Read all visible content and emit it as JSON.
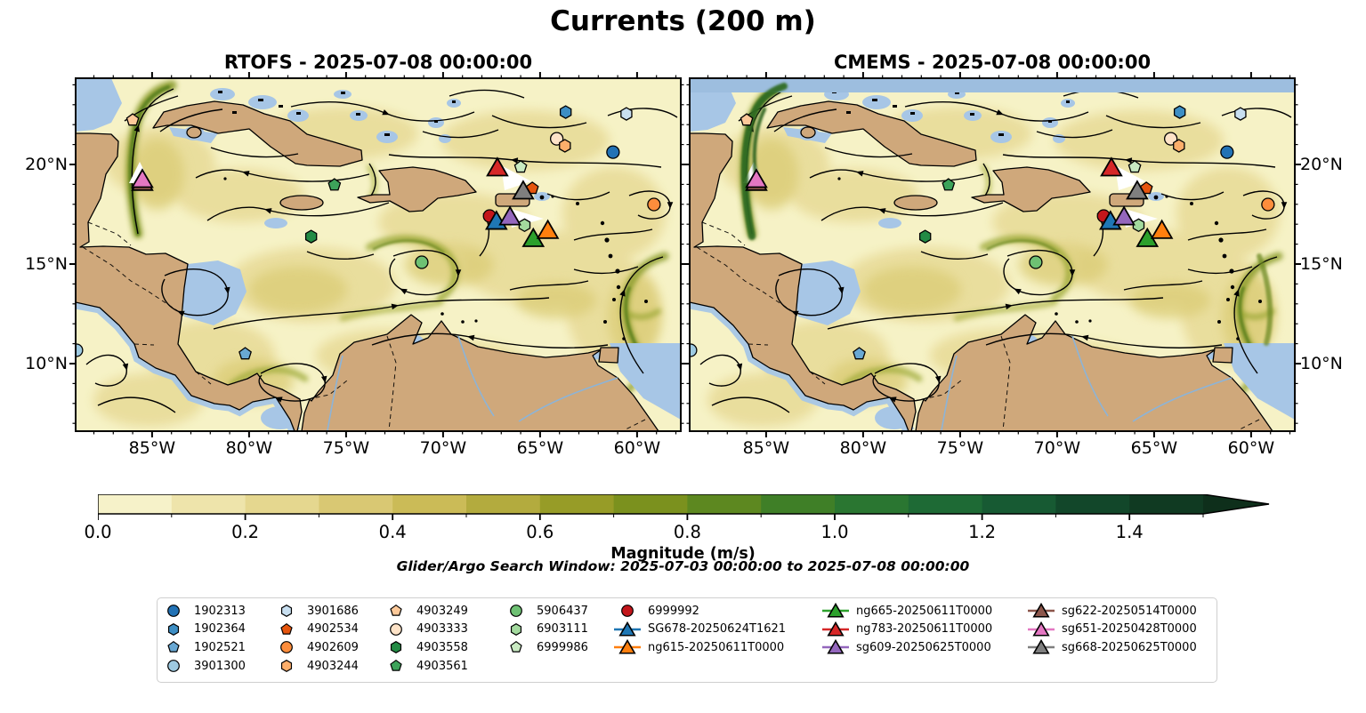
{
  "title": "Currents (200 m)",
  "panels": [
    {
      "id": "rtofs",
      "title": "RTOFS - 2025-07-08 00:00:00"
    },
    {
      "id": "cmems",
      "title": "CMEMS - 2025-07-08 00:00:00"
    }
  ],
  "axes": {
    "lon_ticks": [
      {
        "v": -85,
        "label": "85°W"
      },
      {
        "v": -80,
        "label": "80°W"
      },
      {
        "v": -75,
        "label": "75°W"
      },
      {
        "v": -70,
        "label": "70°W"
      },
      {
        "v": -65,
        "label": "65°W"
      },
      {
        "v": -60,
        "label": "60°W"
      }
    ],
    "lat_ticks": [
      {
        "v": 20,
        "label": "20°N"
      },
      {
        "v": 15,
        "label": "15°N"
      },
      {
        "v": 10,
        "label": "10°N"
      }
    ]
  },
  "colorbar": {
    "label": "Magnitude (m/s)",
    "range": [
      0.0,
      1.5
    ],
    "over_arrow": true,
    "tick_labels": [
      "0.0",
      "0.2",
      "0.4",
      "0.6",
      "0.8",
      "1.0",
      "1.2",
      "1.4"
    ],
    "tick_values": [
      0.0,
      0.2,
      0.4,
      0.6,
      0.8,
      1.0,
      1.2,
      1.4
    ],
    "minor_step": 0.1,
    "colors": [
      "#f6f2c9",
      "#eee4ab",
      "#e5d78f",
      "#d9c873",
      "#cbbb57",
      "#b3ab3e",
      "#979c27",
      "#7b911e",
      "#5d8820",
      "#3f7f27",
      "#2a7631",
      "#1e6a35",
      "#175a33",
      "#12472a",
      "#103a22"
    ],
    "arrow_color": "#0e2f1b"
  },
  "search_window": "Glider/Argo Search Window: 2025-07-03 00:00:00 to 2025-07-08 00:00:00",
  "legend": {
    "columns": [
      [
        {
          "label": "1902313",
          "shape": "circle",
          "color": "#2272b5"
        },
        {
          "label": "1902364",
          "shape": "hexagon",
          "color": "#3d8ec4"
        },
        {
          "label": "1902521",
          "shape": "pentagon",
          "color": "#69a8d3"
        },
        {
          "label": "3901300",
          "shape": "circle",
          "color": "#9ecae1"
        }
      ],
      [
        {
          "label": "3901686",
          "shape": "hexagon",
          "color": "#c8dff0"
        },
        {
          "label": "4902534",
          "shape": "pentagon",
          "color": "#e6550d"
        },
        {
          "label": "4902609",
          "shape": "circle",
          "color": "#fd8d3c"
        },
        {
          "label": "4903244",
          "shape": "hexagon",
          "color": "#fdae6b"
        }
      ],
      [
        {
          "label": "4903249",
          "shape": "pentagon",
          "color": "#fdc999"
        },
        {
          "label": "4903333",
          "shape": "circle",
          "color": "#fee3c8"
        },
        {
          "label": "4903558",
          "shape": "hexagon",
          "color": "#238b45"
        },
        {
          "label": "4903561",
          "shape": "pentagon",
          "color": "#3da35a"
        }
      ],
      [
        {
          "label": "5906437",
          "shape": "circle",
          "color": "#6ec173"
        },
        {
          "label": "6903111",
          "shape": "hexagon",
          "color": "#a3da9e"
        },
        {
          "label": "6999986",
          "shape": "pentagon",
          "color": "#c9eac2"
        }
      ],
      [
        {
          "label": "6999992",
          "shape": "circle",
          "color": "#c3161b"
        },
        {
          "label": "SG678-20250624T1621",
          "shape": "triangle",
          "color": "#1f77b4",
          "line": true
        },
        {
          "label": "ng615-20250611T0000",
          "shape": "triangle",
          "color": "#ff7f0e",
          "line": true
        }
      ],
      [
        {
          "label": "ng665-20250611T0000",
          "shape": "triangle",
          "color": "#2ca02c",
          "line": true
        },
        {
          "label": "ng783-20250611T0000",
          "shape": "triangle",
          "color": "#d62728",
          "line": true
        },
        {
          "label": "sg609-20250625T0000",
          "shape": "triangle",
          "color": "#9467bd",
          "line": true
        }
      ],
      [
        {
          "label": "sg622-20250514T0000",
          "shape": "triangle",
          "color": "#8c564b",
          "line": true
        },
        {
          "label": "sg651-20250428T0000",
          "shape": "triangle",
          "color": "#e377c2",
          "line": true
        },
        {
          "label": "sg668-20250625T0000",
          "shape": "triangle",
          "color": "#7f7f7f",
          "line": true
        }
      ]
    ]
  },
  "chart_data": {
    "type": "map-streamplot-comparison",
    "title": "Currents (200 m)",
    "depth_m": 200,
    "models": [
      {
        "name": "RTOFS",
        "timestamp": "2025-07-08 00:00:00"
      },
      {
        "name": "CMEMS",
        "timestamp": "2025-07-08 00:00:00"
      }
    ],
    "extent": {
      "lon_min": -88.94,
      "lon_max": -57.75,
      "lat_min": 6.6,
      "lat_max": 24.33
    },
    "colorbar_label": "Magnitude (m/s)",
    "colorbar_range": [
      0.0,
      1.5
    ],
    "markers": [
      {
        "id": "4903249",
        "type": "argo",
        "shape": "pentagon",
        "color": "#fdc999",
        "lon": -86.0,
        "lat": 22.23
      },
      {
        "id": "3901686",
        "type": "argo",
        "shape": "hexagon",
        "color": "#c8dff0",
        "lon": -60.55,
        "lat": 22.54
      },
      {
        "id": "1902364",
        "type": "argo",
        "shape": "hexagon",
        "color": "#3d8ec4",
        "lon": -63.68,
        "lat": 22.63
      },
      {
        "id": "4903333",
        "type": "argo",
        "shape": "circle",
        "color": "#fee3c8",
        "lon": -64.14,
        "lat": 21.29
      },
      {
        "id": "4903244",
        "type": "argo",
        "shape": "hexagon",
        "color": "#fdae6b",
        "lon": -63.72,
        "lat": 20.94
      },
      {
        "id": "1902313",
        "type": "argo",
        "shape": "circle",
        "color": "#2272b5",
        "lon": -61.24,
        "lat": 20.62
      },
      {
        "id": "4902609",
        "type": "argo",
        "shape": "circle",
        "color": "#fd8d3c",
        "lon": -59.13,
        "lat": 17.99
      },
      {
        "id": "4903561",
        "type": "argo",
        "shape": "pentagon",
        "color": "#3da35a",
        "lon": -75.6,
        "lat": 18.97
      },
      {
        "id": "4903558",
        "type": "argo",
        "shape": "hexagon",
        "color": "#238b45",
        "lon": -76.8,
        "lat": 16.38
      },
      {
        "id": "5906437",
        "type": "argo",
        "shape": "circle",
        "color": "#6ec173",
        "lon": -71.1,
        "lat": 15.09
      },
      {
        "id": "1902521",
        "type": "argo",
        "shape": "pentagon",
        "color": "#69a8d3",
        "lon": -80.2,
        "lat": 10.49
      },
      {
        "id": "3901300",
        "type": "argo",
        "shape": "circle",
        "color": "#9ecae1",
        "lon": -88.9,
        "lat": 10.67
      },
      {
        "id": "6999986",
        "type": "argo",
        "shape": "pentagon",
        "color": "#c9eac2",
        "lon": -66.0,
        "lat": 19.87
      },
      {
        "id": "6903111",
        "type": "argo",
        "shape": "hexagon",
        "color": "#a3da9e",
        "lon": -65.8,
        "lat": 16.95
      },
      {
        "id": "6999992",
        "type": "argo",
        "shape": "circle",
        "color": "#c3161b",
        "lon": -67.6,
        "lat": 17.41
      },
      {
        "id": "4902534",
        "type": "argo",
        "shape": "pentagon",
        "color": "#e6550d",
        "lon": -65.4,
        "lat": 18.8
      },
      {
        "id": "sg622-20250514T0000",
        "type": "glider",
        "shape": "triangle",
        "color": "#8c564b",
        "lon": -85.5,
        "lat": 19.18
      },
      {
        "id": "sg651-20250428T0000",
        "type": "glider",
        "shape": "triangle",
        "color": "#e377c2",
        "lon": -85.5,
        "lat": 19.33
      },
      {
        "id": "SG678-20250624T1621",
        "type": "glider",
        "shape": "triangle",
        "color": "#1f77b4",
        "lon": -67.25,
        "lat": 17.23
      },
      {
        "id": "sg609-20250625T0000",
        "type": "glider",
        "shape": "triangle",
        "color": "#9467bd",
        "lon": -66.55,
        "lat": 17.45
      },
      {
        "id": "sg668-20250625T0000",
        "type": "glider",
        "shape": "triangle",
        "color": "#7f7f7f",
        "lon": -65.87,
        "lat": 18.75
      },
      {
        "id": "ng783-20250611T0000",
        "type": "glider",
        "shape": "triangle",
        "color": "#d62728",
        "lon": -67.2,
        "lat": 19.91
      },
      {
        "id": "ng665-20250611T0000",
        "type": "glider",
        "shape": "triangle",
        "color": "#2ca02c",
        "lon": -65.35,
        "lat": 16.36
      },
      {
        "id": "ng615-20250611T0000",
        "type": "glider",
        "shape": "triangle",
        "color": "#ff7f0e",
        "lon": -64.6,
        "lat": 16.77
      }
    ]
  }
}
